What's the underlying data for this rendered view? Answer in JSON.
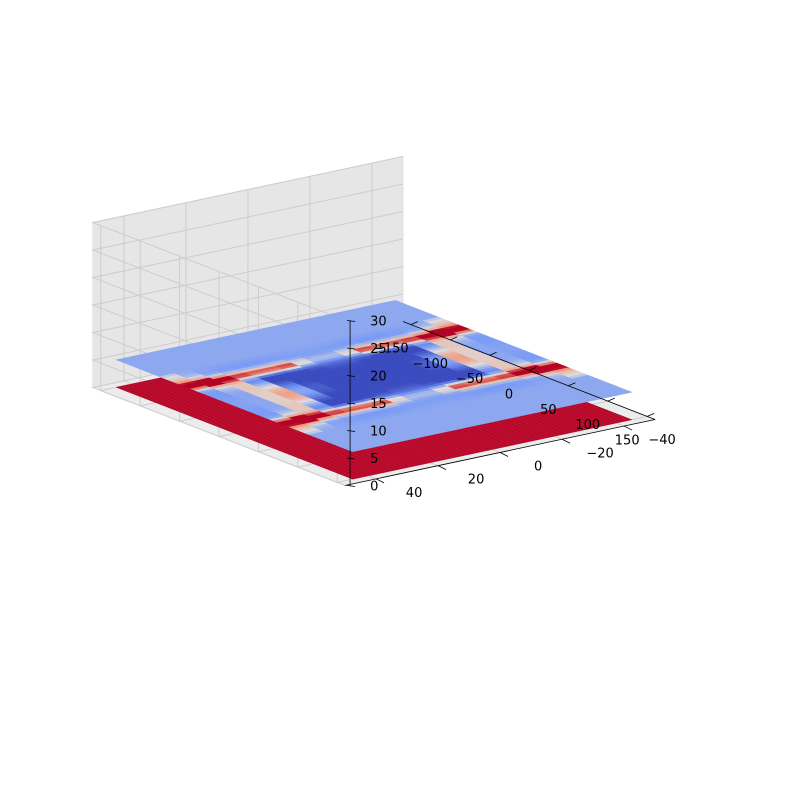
{
  "chart_data": {
    "type": "surface3d",
    "title": "",
    "xlabel": "",
    "ylabel": "",
    "zlabel": "",
    "xlim": [
      -160,
      160
    ],
    "ylim": [
      -50,
      50
    ],
    "zlim": [
      0,
      30
    ],
    "x_ticks": [
      "−150",
      "−100",
      "−50",
      "0",
      "50",
      "100",
      "150"
    ],
    "x_tick_values": [
      -150,
      -100,
      -50,
      0,
      50,
      100,
      150
    ],
    "y_ticks": [
      "−40",
      "−20",
      "0",
      "20",
      "40"
    ],
    "y_tick_values": [
      -40,
      -20,
      0,
      20,
      40
    ],
    "z_ticks": [
      "0",
      "5",
      "10",
      "15",
      "20",
      "25",
      "30"
    ],
    "z_tick_values": [
      0,
      5,
      10,
      15,
      20,
      25,
      30
    ],
    "grid": true,
    "colormap": "coolwarm",
    "surfaces": [
      {
        "kind": "flat-plane",
        "z": 0,
        "x_range": [
          -150,
          150
        ],
        "y_range": [
          -45,
          45
        ],
        "color": "#b40426"
      },
      {
        "kind": "colormapped-plane",
        "z": 5,
        "x_range": [
          -150,
          150
        ],
        "y_range": [
          -45,
          45
        ],
        "description_values": "field pattern with two red vertical bands near x≈-55 and x≈55 and two hyperbolic arcs, deep blue lobes in between"
      }
    ],
    "colors": {
      "low": "#3b4cc0",
      "mid": "#dddddd",
      "high": "#b40426",
      "pane": "#f2f2f2",
      "grid": "#cccccc"
    }
  }
}
